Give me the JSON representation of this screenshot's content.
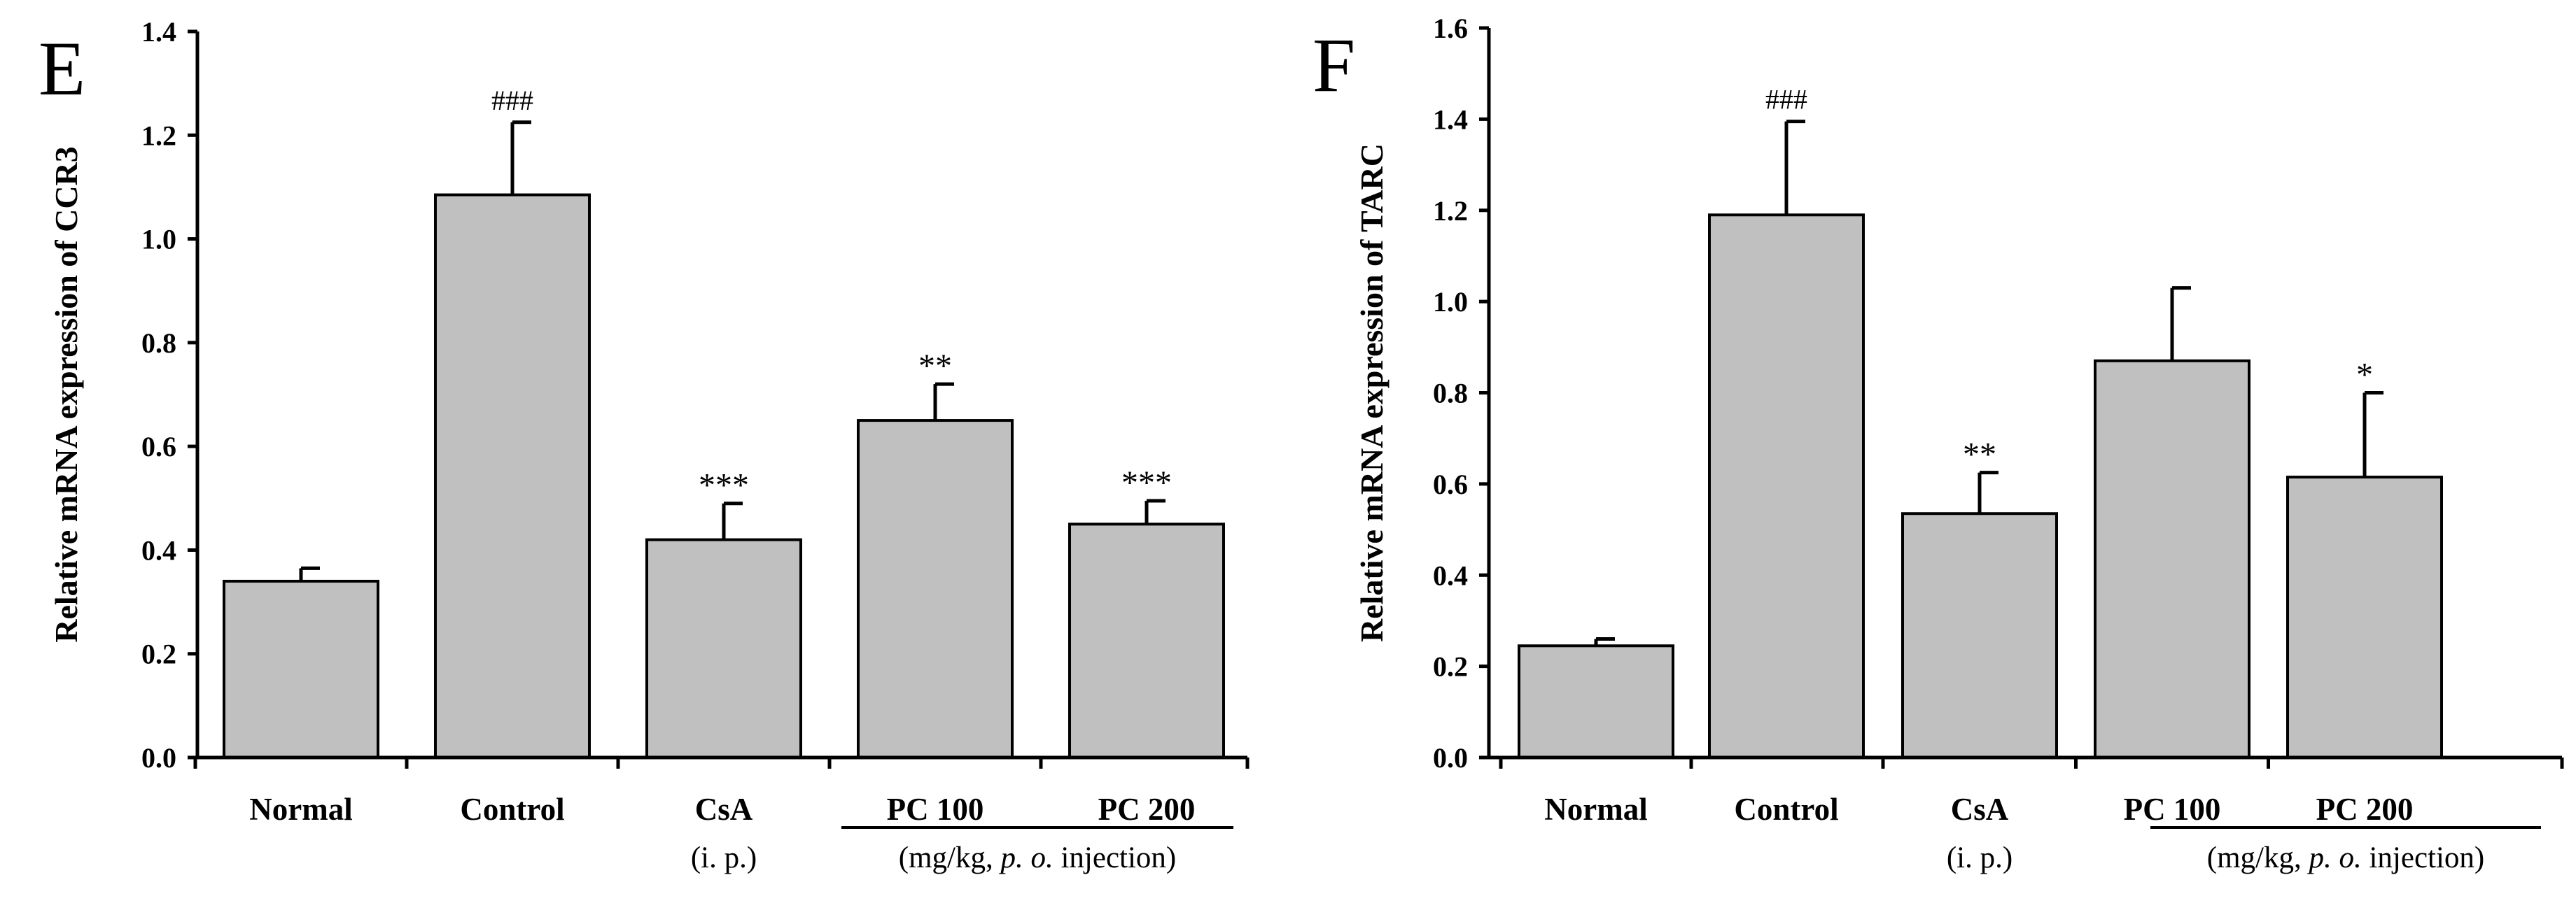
{
  "colors": {
    "bar": "#c0c0c0",
    "axis": "#000000",
    "background": "#ffffff"
  },
  "chart_data": [
    {
      "type": "bar",
      "panel_label": "E",
      "title": "",
      "xlabel": "",
      "ylabel": "Relative mRNA expression of CCR3",
      "ylim": [
        0,
        1.4
      ],
      "yticks": [
        "0.0",
        "0.2",
        "0.4",
        "0.6",
        "0.8",
        "1.0",
        "1.2",
        "1.4"
      ],
      "ytick_values": [
        0,
        0.2,
        0.4,
        0.6,
        0.8,
        1.0,
        1.2,
        1.4
      ],
      "categories": [
        "Normal",
        "Control",
        "CsA",
        "PC 100",
        "PC 200"
      ],
      "values": [
        0.34,
        1.085,
        0.42,
        0.65,
        0.45
      ],
      "errors": [
        0.025,
        0.14,
        0.07,
        0.07,
        0.045
      ],
      "annotations": [
        "",
        "###",
        "***",
        "**",
        "***"
      ],
      "group_labels": {
        "csa_route": "(i. p.)",
        "pc_dose_prefix": "(mg/kg, ",
        "pc_dose_route": "p. o.",
        "pc_dose_suffix": " injection)"
      }
    },
    {
      "type": "bar",
      "panel_label": "F",
      "title": "",
      "xlabel": "",
      "ylabel": "Relative mRNA expression of TARC",
      "ylim": [
        0,
        1.6
      ],
      "yticks": [
        "0.0",
        "0.2",
        "0.4",
        "0.6",
        "0.8",
        "1.0",
        "1.2",
        "1.4",
        "1.6"
      ],
      "ytick_values": [
        0,
        0.2,
        0.4,
        0.6,
        0.8,
        1.0,
        1.2,
        1.4,
        1.6
      ],
      "categories": [
        "Normal",
        "Control",
        "CsA",
        "PC 100",
        "PC 200"
      ],
      "values": [
        0.245,
        1.19,
        0.535,
        0.87,
        0.615
      ],
      "errors": [
        0.015,
        0.205,
        0.09,
        0.16,
        0.185
      ],
      "annotations": [
        "",
        "###",
        "**",
        "",
        "*"
      ],
      "group_labels": {
        "csa_route": "(i. p.)",
        "pc_dose_prefix": "(mg/kg, ",
        "pc_dose_route": "p. o.",
        "pc_dose_suffix": " injection)"
      }
    }
  ]
}
